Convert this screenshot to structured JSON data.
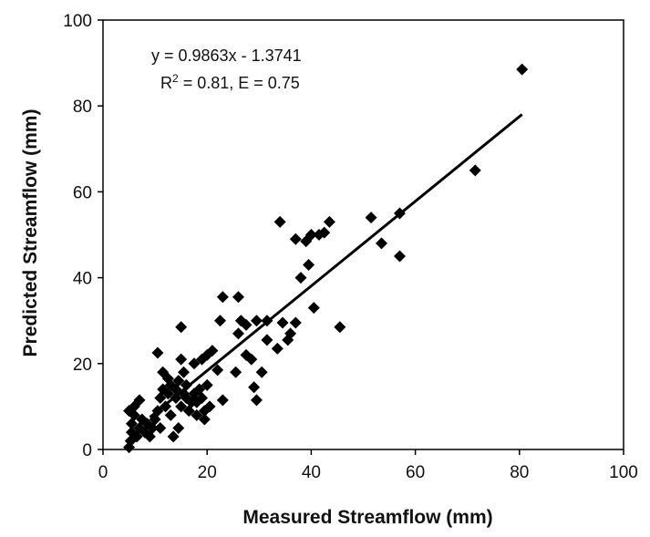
{
  "chart_data": {
    "type": "scatter",
    "title": "",
    "xlabel": "Measured Streamflow (mm)",
    "ylabel": "Predicted Streamflow (mm)",
    "xlim": [
      0,
      100
    ],
    "ylim": [
      0,
      100
    ],
    "xticks": [
      0,
      20,
      40,
      60,
      80,
      100
    ],
    "yticks": [
      0,
      20,
      40,
      60,
      80,
      100
    ],
    "grid": false,
    "legend": "none",
    "marker": "diamond",
    "marker_color": "#000000",
    "line_color": "#000000",
    "annotation": {
      "equation": "y = 0.9863x - 1.3741",
      "r2_prefix": "R",
      "r2_sup": "2",
      "r2_suffix": " = 0.81, E = 0.75"
    },
    "trendline": {
      "slope": 0.9863,
      "intercept": -1.3741,
      "x_range": [
        9,
        80.5
      ]
    },
    "series": [
      {
        "points": [
          [
            5,
            0.5
          ],
          [
            5.3,
            2
          ],
          [
            5.5,
            4
          ],
          [
            5.5,
            6
          ],
          [
            6,
            8
          ],
          [
            5,
            9
          ],
          [
            6,
            10
          ],
          [
            7,
            11.5
          ],
          [
            6.5,
            3
          ],
          [
            7,
            5
          ],
          [
            7.5,
            7
          ],
          [
            8,
            4
          ],
          [
            8.5,
            6
          ],
          [
            9,
            3
          ],
          [
            9.5,
            5
          ],
          [
            10,
            7
          ],
          [
            10.5,
            9
          ],
          [
            11,
            5
          ],
          [
            11,
            12
          ],
          [
            11.5,
            14
          ],
          [
            11.5,
            18
          ],
          [
            10.5,
            22.5
          ],
          [
            12,
            10
          ],
          [
            12.5,
            13
          ],
          [
            12.5,
            16.5
          ],
          [
            13,
            8
          ],
          [
            13,
            15
          ],
          [
            13.5,
            3
          ],
          [
            14,
            12
          ],
          [
            14,
            14
          ],
          [
            14.5,
            16
          ],
          [
            14.5,
            5
          ],
          [
            15,
            21
          ],
          [
            15,
            28.5
          ],
          [
            15,
            10
          ],
          [
            15.5,
            13
          ],
          [
            15.5,
            18
          ],
          [
            16,
            12
          ],
          [
            16,
            15
          ],
          [
            16.5,
            9
          ],
          [
            17,
            11
          ],
          [
            17.5,
            13
          ],
          [
            17.5,
            20
          ],
          [
            18,
            8
          ],
          [
            18,
            11
          ],
          [
            18.5,
            14
          ],
          [
            19,
            12
          ],
          [
            19,
            21
          ],
          [
            19.5,
            7
          ],
          [
            19.5,
            9
          ],
          [
            20,
            15
          ],
          [
            20,
            22
          ],
          [
            20.5,
            10
          ],
          [
            21,
            23
          ],
          [
            22,
            18.5
          ],
          [
            22.5,
            30
          ],
          [
            23,
            35.5
          ],
          [
            23,
            11.5
          ],
          [
            25.5,
            18
          ],
          [
            26,
            27
          ],
          [
            26,
            35.5
          ],
          [
            26.5,
            30
          ],
          [
            27.5,
            29
          ],
          [
            27.5,
            22
          ],
          [
            28.5,
            21
          ],
          [
            29,
            14.5
          ],
          [
            29.5,
            30
          ],
          [
            29.5,
            11.5
          ],
          [
            30.5,
            18
          ],
          [
            31.5,
            25.5
          ],
          [
            31.5,
            30
          ],
          [
            33.5,
            23.5
          ],
          [
            34,
            53
          ],
          [
            34.5,
            29.5
          ],
          [
            35.5,
            25.5
          ],
          [
            36,
            27
          ],
          [
            37,
            29.5
          ],
          [
            37,
            49
          ],
          [
            38,
            40
          ],
          [
            39,
            48.5
          ],
          [
            39.5,
            43
          ],
          [
            40,
            50
          ],
          [
            40.5,
            33
          ],
          [
            41.5,
            50
          ],
          [
            42.5,
            50.5
          ],
          [
            43.5,
            53
          ],
          [
            45.5,
            28.5
          ],
          [
            51.5,
            54
          ],
          [
            53.5,
            48
          ],
          [
            57,
            55
          ],
          [
            57,
            45
          ],
          [
            71.5,
            65
          ],
          [
            80.5,
            88.5
          ]
        ]
      }
    ]
  }
}
